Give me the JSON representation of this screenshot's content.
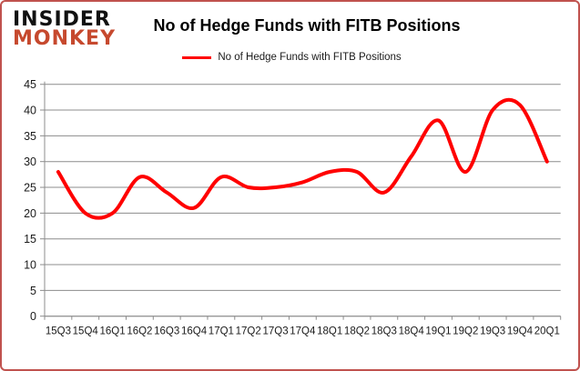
{
  "logo": {
    "line1": "INSIDER",
    "line2": "MONKEY"
  },
  "header": {
    "title": "No of Hedge Funds with FITB Positions"
  },
  "legend": {
    "label": "No of Hedge Funds with FITB Positions",
    "swatch_color": "#ff0000"
  },
  "colors": {
    "line": "#ff0000",
    "grid": "#8c8c8c",
    "axis": "#8c8c8c",
    "tick_text": "#1a1a1a",
    "frame_border": "#c0524e",
    "logo_black": "#111111",
    "logo_red": "#c6492e"
  },
  "chart_data": {
    "type": "line",
    "title": "No of Hedge Funds with FITB Positions",
    "categories": [
      "15Q3",
      "15Q4",
      "16Q1",
      "16Q2",
      "16Q3",
      "16Q4",
      "17Q1",
      "17Q2",
      "17Q3",
      "17Q4",
      "18Q1",
      "18Q2",
      "18Q3",
      "18Q4",
      "19Q1",
      "19Q2",
      "19Q3",
      "19Q4",
      "20Q1"
    ],
    "series": [
      {
        "name": "No of Hedge Funds with FITB Positions",
        "color": "#ff0000",
        "values": [
          28,
          20,
          20,
          27,
          24,
          21,
          27,
          25,
          25,
          26,
          28,
          28,
          24,
          31,
          38,
          28,
          40,
          41,
          30
        ]
      }
    ],
    "xlabel": "",
    "ylabel": "",
    "ylim": [
      0,
      45
    ],
    "yticks": [
      0,
      5,
      10,
      15,
      20,
      25,
      30,
      35,
      40,
      45
    ],
    "grid": "horizontal",
    "legend_position": "top",
    "smoothed_line": true,
    "markers": false
  }
}
